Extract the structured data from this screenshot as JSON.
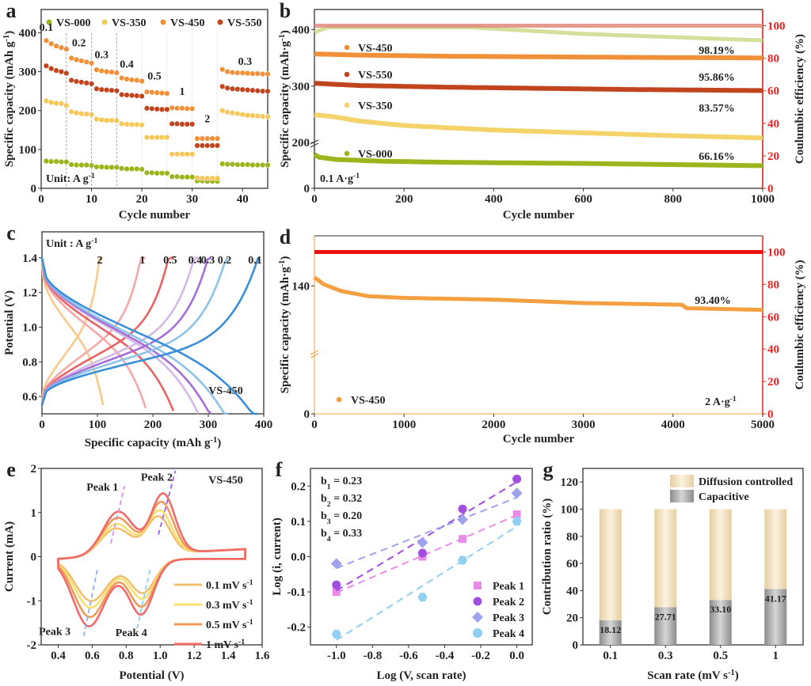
{
  "chart_data": [
    {
      "panel": "a",
      "type": "scatter",
      "xlabel": "Cycle number",
      "ylabel": "Specific capacity (mAh g-1)",
      "xlim": [
        0,
        45
      ],
      "ylim": [
        0,
        460
      ],
      "xticks": [
        0,
        10,
        20,
        30,
        40
      ],
      "yticks": [
        0,
        100,
        200,
        300,
        400
      ],
      "annotation": "Unit: A g-1",
      "rate_labels": [
        {
          "label": "0.1",
          "x": 1,
          "y": 405
        },
        {
          "label": "0.2",
          "x": 7.5,
          "y": 365
        },
        {
          "label": "0.3",
          "x": 12,
          "y": 335
        },
        {
          "label": "0.4",
          "x": 17,
          "y": 310
        },
        {
          "label": "0.5",
          "x": 22.5,
          "y": 280
        },
        {
          "label": "1",
          "x": 28,
          "y": 240
        },
        {
          "label": "2",
          "x": 33,
          "y": 170
        },
        {
          "label": "0.3",
          "x": 40.5,
          "y": 318
        }
      ],
      "dividers": [
        5,
        10,
        15
      ],
      "series": [
        {
          "name": "VS-000",
          "color": "#9cb51c",
          "values": [
            70,
            69,
            69,
            68,
            68,
            61,
            60,
            60,
            60,
            59,
            55,
            55,
            54,
            54,
            54,
            51,
            50,
            50,
            50,
            49,
            40,
            40,
            39,
            39,
            39,
            30,
            30,
            29,
            29,
            29,
            19,
            19,
            18,
            18,
            18,
            63,
            62,
            62,
            61,
            61,
            61,
            60,
            60,
            60,
            60
          ]
        },
        {
          "name": "VS-350",
          "color": "#f5c85a",
          "values": [
            225,
            221,
            219,
            218,
            213,
            197,
            194,
            192,
            191,
            190,
            178,
            176,
            175,
            175,
            174,
            166,
            165,
            164,
            164,
            163,
            131,
            131,
            131,
            131,
            131,
            88,
            88,
            88,
            88,
            88,
            27,
            26,
            26,
            26,
            26,
            200,
            196,
            194,
            192,
            190,
            188,
            187,
            186,
            185,
            184
          ]
        },
        {
          "name": "VS-450",
          "color": "#f0913a",
          "values": [
            380,
            372,
            366,
            362,
            358,
            335,
            331,
            328,
            325,
            322,
            305,
            302,
            300,
            299,
            297,
            284,
            281,
            279,
            278,
            276,
            248,
            247,
            246,
            245,
            244,
            207,
            206,
            206,
            205,
            205,
            128,
            128,
            128,
            128,
            128,
            306,
            300,
            298,
            297,
            297,
            296,
            295,
            295,
            294,
            294
          ]
        },
        {
          "name": "VS-550",
          "color": "#c0451e",
          "values": [
            315,
            308,
            303,
            300,
            296,
            278,
            275,
            273,
            271,
            269,
            256,
            254,
            253,
            252,
            251,
            241,
            240,
            239,
            238,
            237,
            206,
            205,
            204,
            203,
            203,
            166,
            166,
            165,
            165,
            165,
            110,
            110,
            110,
            110,
            110,
            262,
            258,
            256,
            255,
            254,
            253,
            252,
            251,
            250,
            250
          ]
        }
      ]
    },
    {
      "panel": "b",
      "type": "line",
      "xlabel": "Cycle number",
      "ylabel": "Specific capacity (mAh·g-1)",
      "y2label": "Coulumbic efficiency (%)",
      "xlim": [
        0,
        1000
      ],
      "xticks": [
        0,
        200,
        400,
        600,
        800,
        1000
      ],
      "yticks": [
        0,
        200,
        300,
        400
      ],
      "y2ticks": [
        0,
        20,
        40,
        60,
        80,
        100
      ],
      "axis_break": true,
      "annotation": "0.1 A·g-1",
      "series": [
        {
          "name": "VS-450",
          "color": "#f0913a",
          "retention": "98.19%",
          "x": [
            0,
            100,
            300,
            500,
            700,
            1000
          ],
          "values": [
            357,
            355,
            353,
            352,
            351,
            350
          ]
        },
        {
          "name": "VS-550",
          "color": "#c0451e",
          "retention": "95.86%",
          "x": [
            0,
            100,
            300,
            500,
            700,
            1000
          ],
          "values": [
            305,
            301,
            298,
            296,
            294,
            292
          ]
        },
        {
          "name": "VS-350",
          "color": "#f5d36b",
          "retention": "83.57%",
          "x": [
            0,
            40,
            100,
            200,
            400,
            600,
            800,
            1000
          ],
          "values": [
            249,
            246,
            238,
            230,
            222,
            217,
            212,
            208
          ]
        },
        {
          "name": "VS-000",
          "color": "#9cb51c",
          "retention": "66.16%",
          "x": [
            0,
            10,
            50,
            150,
            300,
            600,
            1000
          ],
          "values": [
            60,
            55,
            51,
            48,
            46,
            44,
            40
          ]
        }
      ],
      "ce_series": [
        {
          "name": "CE VS-000",
          "color": "#cbd98a",
          "x": [
            0,
            30,
            350,
            600,
            1000
          ],
          "values": [
            96,
            99,
            99,
            95,
            91
          ]
        },
        {
          "name": "CE others",
          "color": "#e28a7a",
          "x": [
            0,
            1000
          ],
          "values": [
            100,
            100
          ]
        }
      ]
    },
    {
      "panel": "c",
      "type": "line",
      "xlabel": "Specific capacity (mAh g-1)",
      "ylabel": "Potential (V)",
      "xlim": [
        0,
        400
      ],
      "ylim": [
        0.5,
        1.55
      ],
      "xticks": [
        0,
        100,
        200,
        300,
        400
      ],
      "yticks": [
        0.6,
        0.8,
        1.0,
        1.2,
        1.4
      ],
      "annotation": "Unit : A g-1",
      "sample": "VS-450",
      "series": [
        {
          "name": "2",
          "color": "#f9c98b",
          "cap": 110
        },
        {
          "name": "1",
          "color": "#f4a9a8",
          "cap": 187
        },
        {
          "name": "0.5",
          "color": "#e86464",
          "cap": 237
        },
        {
          "name": "0.4",
          "color": "#d4b8e6",
          "cap": 282
        },
        {
          "name": "0.3",
          "color": "#a46fd6",
          "cap": 305
        },
        {
          "name": "0.2",
          "color": "#8ec3e8",
          "cap": 335
        },
        {
          "name": "0.1",
          "color": "#3a8fd8",
          "cap": 390
        }
      ]
    },
    {
      "panel": "d",
      "type": "line",
      "xlabel": "Cycle number",
      "ylabel": "Specific capacity (mAh·g-1)",
      "y2label": "Coulumbic efficiency (%)",
      "xlim": [
        0,
        5000
      ],
      "xticks": [
        0,
        1000,
        2000,
        3000,
        4000,
        5000
      ],
      "yticks": [
        0,
        140
      ],
      "y2ticks": [
        0,
        20,
        40,
        60,
        80,
        100
      ],
      "axis_break": true,
      "annotation": "2 A·g-1",
      "retention": "93.40%",
      "series": [
        {
          "name": "VS-450",
          "color": "#f5a040",
          "x": [
            0,
            100,
            300,
            600,
            1000,
            2000,
            2500,
            3000,
            4100,
            4150,
            5000
          ],
          "values": [
            145,
            141,
            137,
            134,
            133,
            132,
            131,
            130,
            129,
            127,
            126
          ]
        }
      ],
      "ce_series": [
        {
          "name": "CE",
          "color": "#ee1111",
          "x": [
            0,
            5000
          ],
          "values": [
            100,
            100
          ]
        }
      ]
    },
    {
      "panel": "e",
      "type": "line",
      "xlabel": "Potential (V)",
      "ylabel": "Current (mA)",
      "xlim": [
        0.3,
        1.6
      ],
      "ylim": [
        -2,
        2
      ],
      "xticks": [
        0.4,
        0.6,
        0.8,
        1.0,
        1.2,
        1.4,
        1.6
      ],
      "yticks": [
        -2,
        -1,
        0,
        1,
        2
      ],
      "sample": "VS-450",
      "peak_labels": [
        "Peak 1",
        "Peak 2",
        "Peak 3",
        "Peak 4"
      ],
      "series": [
        {
          "name": "0.1 mV s-1",
          "color": "#f0c070",
          "scale": 0.62
        },
        {
          "name": "0.3 mV s-1",
          "color": "#f5e070",
          "scale": 0.72
        },
        {
          "name": "0.5 mV s-1",
          "color": "#f09a5a",
          "scale": 0.86
        },
        {
          "name": "1 mV s-1",
          "color": "#f06a6a",
          "scale": 1.0
        }
      ]
    },
    {
      "panel": "f",
      "type": "scatter",
      "xlabel": "Log (V, scan rate)",
      "ylabel": "Log (i, current)",
      "xlim": [
        -1.1,
        0.05
      ],
      "ylim": [
        -0.25,
        0.25
      ],
      "xticks": [
        -1.0,
        -0.8,
        -0.6,
        -0.4,
        -0.2,
        0.0
      ],
      "yticks": [
        -0.2,
        -0.1,
        0.0,
        0.1,
        0.2
      ],
      "slopes": [
        "b1 = 0.23",
        "b2 = 0.32",
        "b3 = 0.20",
        "b4 = 0.33"
      ],
      "x": [
        -1.0,
        -0.523,
        -0.301,
        0.0
      ],
      "series": [
        {
          "name": "Peak 1",
          "color": "#e98ce8",
          "marker": "square",
          "values": [
            -0.1,
            0.0,
            0.05,
            0.12
          ]
        },
        {
          "name": "Peak 2",
          "color": "#a04fe0",
          "marker": "circle",
          "values": [
            -0.08,
            0.01,
            0.135,
            0.22
          ]
        },
        {
          "name": "Peak 3",
          "color": "#9fa3ee",
          "marker": "diamond",
          "values": [
            -0.02,
            0.04,
            0.105,
            0.18
          ]
        },
        {
          "name": "Peak 4",
          "color": "#8fd0f2",
          "marker": "hexagon",
          "values": [
            -0.22,
            -0.115,
            -0.01,
            0.1
          ]
        }
      ]
    },
    {
      "panel": "g",
      "type": "bar",
      "xlabel": "Scan rate (mV s-1)",
      "ylabel": "Contribution ratio (%)",
      "ylim": [
        0,
        130
      ],
      "yticks": [
        0,
        20,
        40,
        60,
        80,
        100,
        120
      ],
      "categories": [
        "0.1",
        "0.3",
        "0.5",
        "1"
      ],
      "series": [
        {
          "name": "Capacitive",
          "color": "#a9a9a9",
          "values": [
            18.12,
            27.71,
            33.1,
            41.17
          ]
        },
        {
          "name": "Diffusion controlled",
          "color": "#ecd9b5",
          "values": [
            81.88,
            72.29,
            66.9,
            58.83
          ]
        }
      ],
      "data_labels": [
        "18.12",
        "27.71",
        "33.10",
        "41.17"
      ]
    }
  ]
}
